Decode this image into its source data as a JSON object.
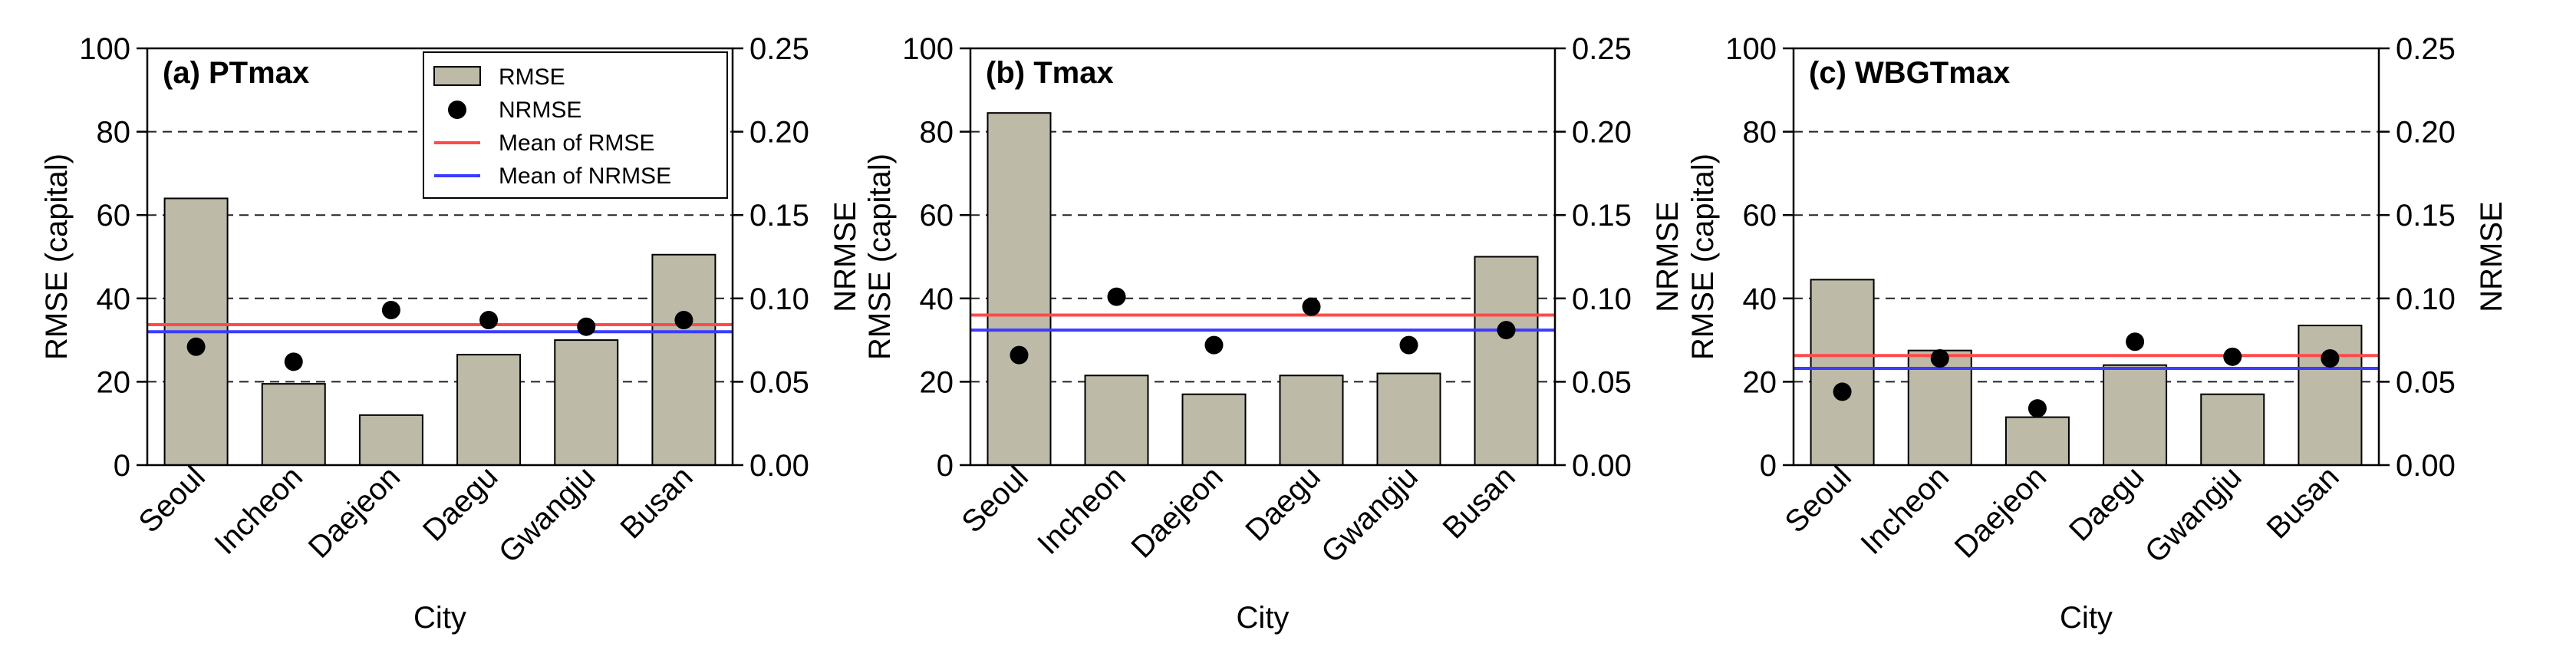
{
  "chart_data": [
    {
      "type": "bar",
      "title": "(a) PTmax",
      "xlabel": "City",
      "ylabel": "RMSE (capital)",
      "y2label": "NRMSE",
      "categories": [
        "Seoul",
        "Incheon",
        "Daejeon",
        "Daegu",
        "Gwangju",
        "Busan"
      ],
      "series": [
        {
          "name": "RMSE",
          "kind": "bar",
          "axis": "left",
          "values": [
            64,
            19.5,
            12,
            26.5,
            30,
            50.5
          ]
        },
        {
          "name": "NRMSE",
          "kind": "scatter",
          "axis": "right",
          "values": [
            0.071,
            0.062,
            0.093,
            0.087,
            0.083,
            0.087
          ]
        }
      ],
      "reference_lines": [
        {
          "name": "Mean of RMSE",
          "axis": "left",
          "value": 33.7
        },
        {
          "name": "Mean of NRMSE",
          "axis": "right",
          "value": 0.08
        }
      ],
      "ylim": [
        0,
        100
      ],
      "y2lim": [
        0,
        0.25
      ],
      "yticks": [
        "0",
        "20",
        "40",
        "60",
        "80",
        "100"
      ],
      "y2ticks": [
        "0.00",
        "0.05",
        "0.10",
        "0.15",
        "0.20",
        "0.25"
      ],
      "grid": "dashed horizontal",
      "legend": [
        "RMSE",
        "NRMSE",
        "Mean of RMSE",
        "Mean of NRMSE"
      ],
      "legend_position": "top-right"
    },
    {
      "type": "bar",
      "title": "(b) Tmax",
      "xlabel": "City",
      "ylabel": "RMSE (capital)",
      "y2label": "NRMSE",
      "categories": [
        "Seoul",
        "Incheon",
        "Daejeon",
        "Daegu",
        "Gwangju",
        "Busan"
      ],
      "series": [
        {
          "name": "RMSE",
          "kind": "bar",
          "axis": "left",
          "values": [
            84.5,
            21.5,
            17,
            21.5,
            22,
            50
          ]
        },
        {
          "name": "NRMSE",
          "kind": "scatter",
          "axis": "right",
          "values": [
            0.066,
            0.101,
            0.072,
            0.095,
            0.072,
            0.081
          ]
        }
      ],
      "reference_lines": [
        {
          "name": "Mean of RMSE",
          "axis": "left",
          "value": 36
        },
        {
          "name": "Mean of NRMSE",
          "axis": "right",
          "value": 0.081
        }
      ],
      "ylim": [
        0,
        100
      ],
      "y2lim": [
        0,
        0.25
      ],
      "yticks": [
        "0",
        "20",
        "40",
        "60",
        "80",
        "100"
      ],
      "y2ticks": [
        "0.00",
        "0.05",
        "0.10",
        "0.15",
        "0.20",
        "0.25"
      ],
      "grid": "dashed horizontal"
    },
    {
      "type": "bar",
      "title": "(c) WBGTmax",
      "xlabel": "City",
      "ylabel": "RMSE (capital)",
      "y2label": "NRMSE",
      "categories": [
        "Seoul",
        "Incheon",
        "Daejeon",
        "Daegu",
        "Gwangju",
        "Busan"
      ],
      "series": [
        {
          "name": "RMSE",
          "kind": "bar",
          "axis": "left",
          "values": [
            44.5,
            27.5,
            11.5,
            24,
            17,
            33.5
          ]
        },
        {
          "name": "NRMSE",
          "kind": "scatter",
          "axis": "right",
          "values": [
            0.044,
            0.064,
            0.034,
            0.074,
            0.065,
            0.064
          ]
        }
      ],
      "reference_lines": [
        {
          "name": "Mean of RMSE",
          "axis": "left",
          "value": 26.3
        },
        {
          "name": "Mean of NRMSE",
          "axis": "right",
          "value": 0.058
        }
      ],
      "ylim": [
        0,
        100
      ],
      "y2lim": [
        0,
        0.25
      ],
      "yticks": [
        "0",
        "20",
        "40",
        "60",
        "80",
        "100"
      ],
      "y2ticks": [
        "0.00",
        "0.05",
        "0.10",
        "0.15",
        "0.20",
        "0.25"
      ],
      "grid": "dashed horizontal"
    }
  ],
  "colors": {
    "bar_fill": "#bdbaa8",
    "bar_stroke": "#000000",
    "marker": "#000000",
    "mean_rmse_line": "#ff4a4a",
    "mean_nrmse_line": "#3b3bff",
    "grid": "#222222"
  }
}
